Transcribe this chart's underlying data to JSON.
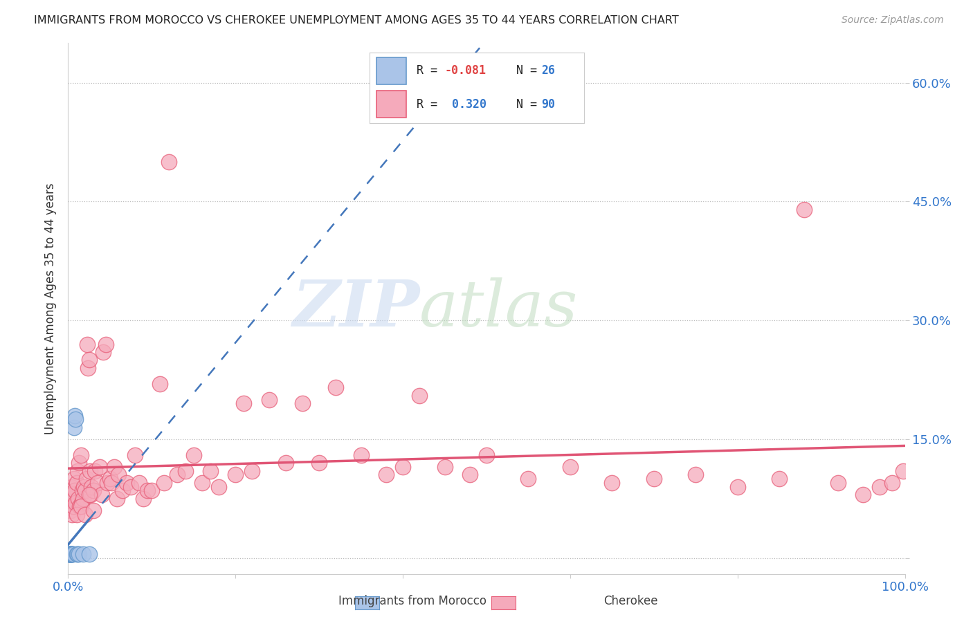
{
  "title": "IMMIGRANTS FROM MOROCCO VS CHEROKEE UNEMPLOYMENT AMONG AGES 35 TO 44 YEARS CORRELATION CHART",
  "source": "Source: ZipAtlas.com",
  "ylabel": "Unemployment Among Ages 35 to 44 years",
  "xlim": [
    0,
    1.0
  ],
  "ylim": [
    -0.02,
    0.65
  ],
  "ytick_positions": [
    0.0,
    0.15,
    0.3,
    0.45,
    0.6
  ],
  "ytick_labels": [
    "",
    "15.0%",
    "30.0%",
    "45.0%",
    "60.0%"
  ],
  "color_morocco": "#aac4e8",
  "color_cherokee": "#f5aabb",
  "color_morocco_edge": "#6699cc",
  "color_cherokee_edge": "#e8607a",
  "color_morocco_line": "#4477bb",
  "color_cherokee_line": "#e05575",
  "background_color": "#ffffff",
  "morocco_x": [
    0.001,
    0.001,
    0.001,
    0.001,
    0.002,
    0.002,
    0.002,
    0.002,
    0.003,
    0.003,
    0.003,
    0.004,
    0.004,
    0.004,
    0.005,
    0.005,
    0.005,
    0.006,
    0.007,
    0.008,
    0.009,
    0.01,
    0.011,
    0.013,
    0.018,
    0.025
  ],
  "morocco_y": [
    0.005,
    0.005,
    0.005,
    0.005,
    0.005,
    0.005,
    0.005,
    0.005,
    0.005,
    0.005,
    0.005,
    0.005,
    0.005,
    0.005,
    0.005,
    0.005,
    0.005,
    0.005,
    0.165,
    0.18,
    0.175,
    0.005,
    0.005,
    0.005,
    0.005,
    0.005
  ],
  "cherokee_x": [
    0.002,
    0.003,
    0.004,
    0.005,
    0.005,
    0.006,
    0.007,
    0.008,
    0.009,
    0.01,
    0.011,
    0.012,
    0.013,
    0.014,
    0.015,
    0.016,
    0.017,
    0.018,
    0.019,
    0.02,
    0.022,
    0.023,
    0.024,
    0.025,
    0.026,
    0.027,
    0.028,
    0.03,
    0.032,
    0.035,
    0.038,
    0.04,
    0.042,
    0.045,
    0.047,
    0.05,
    0.052,
    0.055,
    0.058,
    0.06,
    0.065,
    0.07,
    0.075,
    0.08,
    0.085,
    0.09,
    0.095,
    0.1,
    0.11,
    0.115,
    0.12,
    0.13,
    0.14,
    0.15,
    0.16,
    0.17,
    0.18,
    0.2,
    0.21,
    0.22,
    0.24,
    0.26,
    0.28,
    0.3,
    0.32,
    0.35,
    0.38,
    0.4,
    0.42,
    0.45,
    0.48,
    0.5,
    0.55,
    0.6,
    0.65,
    0.7,
    0.75,
    0.8,
    0.85,
    0.88,
    0.92,
    0.95,
    0.97,
    0.985,
    0.998,
    0.01,
    0.015,
    0.02,
    0.025,
    0.03
  ],
  "cherokee_y": [
    0.075,
    0.06,
    0.09,
    0.08,
    0.055,
    0.065,
    0.1,
    0.085,
    0.07,
    0.095,
    0.11,
    0.075,
    0.12,
    0.065,
    0.13,
    0.07,
    0.085,
    0.075,
    0.09,
    0.085,
    0.1,
    0.27,
    0.24,
    0.25,
    0.11,
    0.08,
    0.09,
    0.085,
    0.11,
    0.095,
    0.115,
    0.08,
    0.26,
    0.27,
    0.095,
    0.1,
    0.095,
    0.115,
    0.075,
    0.105,
    0.085,
    0.095,
    0.09,
    0.13,
    0.095,
    0.075,
    0.085,
    0.085,
    0.22,
    0.095,
    0.5,
    0.105,
    0.11,
    0.13,
    0.095,
    0.11,
    0.09,
    0.105,
    0.195,
    0.11,
    0.2,
    0.12,
    0.195,
    0.12,
    0.215,
    0.13,
    0.105,
    0.115,
    0.205,
    0.115,
    0.105,
    0.13,
    0.1,
    0.115,
    0.095,
    0.1,
    0.105,
    0.09,
    0.1,
    0.44,
    0.095,
    0.08,
    0.09,
    0.095,
    0.11,
    0.055,
    0.065,
    0.055,
    0.08,
    0.06
  ]
}
